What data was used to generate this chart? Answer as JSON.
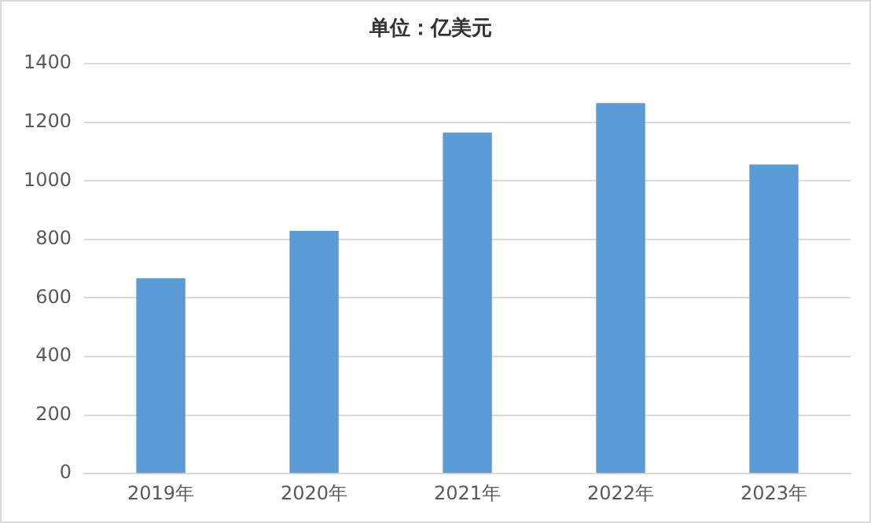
{
  "chart_data": {
    "type": "bar",
    "title": "单位：亿美元",
    "categories": [
      "2019年",
      "2020年",
      "2021年",
      "2022年",
      "2023年"
    ],
    "values": [
      668,
      829,
      1165,
      1266,
      1056
    ],
    "color": "#5b9bd5",
    "ylim": [
      0,
      1400
    ],
    "yticks": [
      0,
      200,
      400,
      600,
      800,
      1000,
      1200,
      1400
    ],
    "grid": "y",
    "legend": false
  }
}
